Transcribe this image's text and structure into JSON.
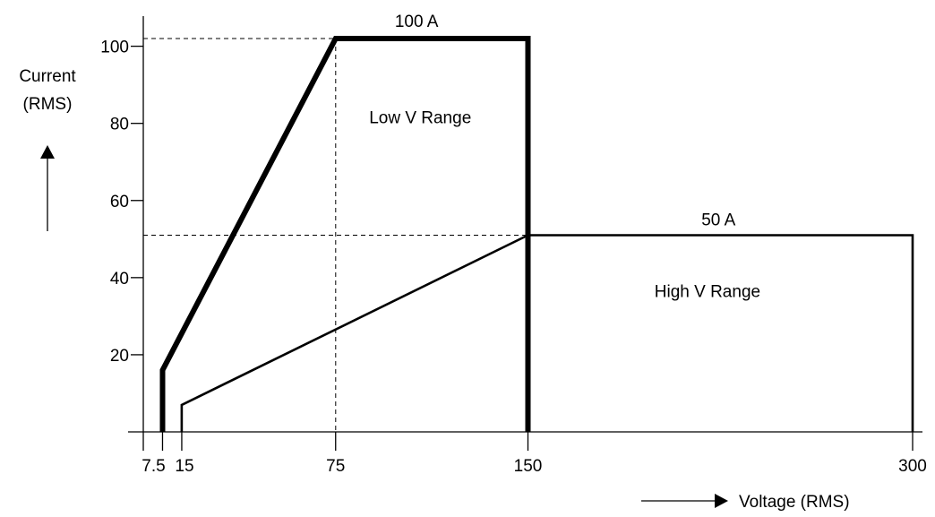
{
  "chart_data": {
    "type": "line",
    "xlabel": "Voltage (RMS)",
    "ylabel_line1": "Current",
    "ylabel_line2": "(RMS)",
    "x_ticks": [
      {
        "value": 7.5,
        "label": "7.5"
      },
      {
        "value": 15,
        "label": "15"
      },
      {
        "value": 75,
        "label": "75"
      },
      {
        "value": 150,
        "label": "150"
      },
      {
        "value": 300,
        "label": "300"
      }
    ],
    "y_ticks": [
      {
        "value": 20,
        "label": "20"
      },
      {
        "value": 40,
        "label": "40"
      },
      {
        "value": 60,
        "label": "60"
      },
      {
        "value": 80,
        "label": "80"
      },
      {
        "value": 100,
        "label": "100"
      }
    ],
    "xlim": [
      0,
      300
    ],
    "ylim": [
      0,
      102
    ],
    "grid": false,
    "series": [
      {
        "style": "thick",
        "points": [
          [
            7.5,
            0
          ],
          [
            7.5,
            16
          ],
          [
            75,
            102
          ],
          [
            150,
            102
          ],
          [
            150,
            0
          ]
        ]
      },
      {
        "style": "thin",
        "points": [
          [
            15,
            0
          ],
          [
            15,
            7
          ],
          [
            150,
            51
          ],
          [
            300,
            51
          ],
          [
            300,
            0
          ]
        ]
      }
    ],
    "guides": [
      {
        "points": [
          [
            0,
            102
          ],
          [
            75,
            102
          ]
        ]
      },
      {
        "points": [
          [
            75,
            102
          ],
          [
            75,
            0
          ]
        ]
      },
      {
        "points": [
          [
            0,
            51
          ],
          [
            150,
            51
          ]
        ]
      }
    ],
    "annotations": [
      {
        "name": "label-100a",
        "text": "100 A",
        "x": 112.5,
        "y": 102
      },
      {
        "name": "label-50a",
        "text": "50 A",
        "x": 225,
        "y": 51
      },
      {
        "name": "label-low-v-range",
        "text": "Low V Range",
        "x": 108,
        "y": 80
      },
      {
        "name": "label-high-v-range",
        "text": "High V Range",
        "x": 220,
        "y": 35
      }
    ]
  }
}
